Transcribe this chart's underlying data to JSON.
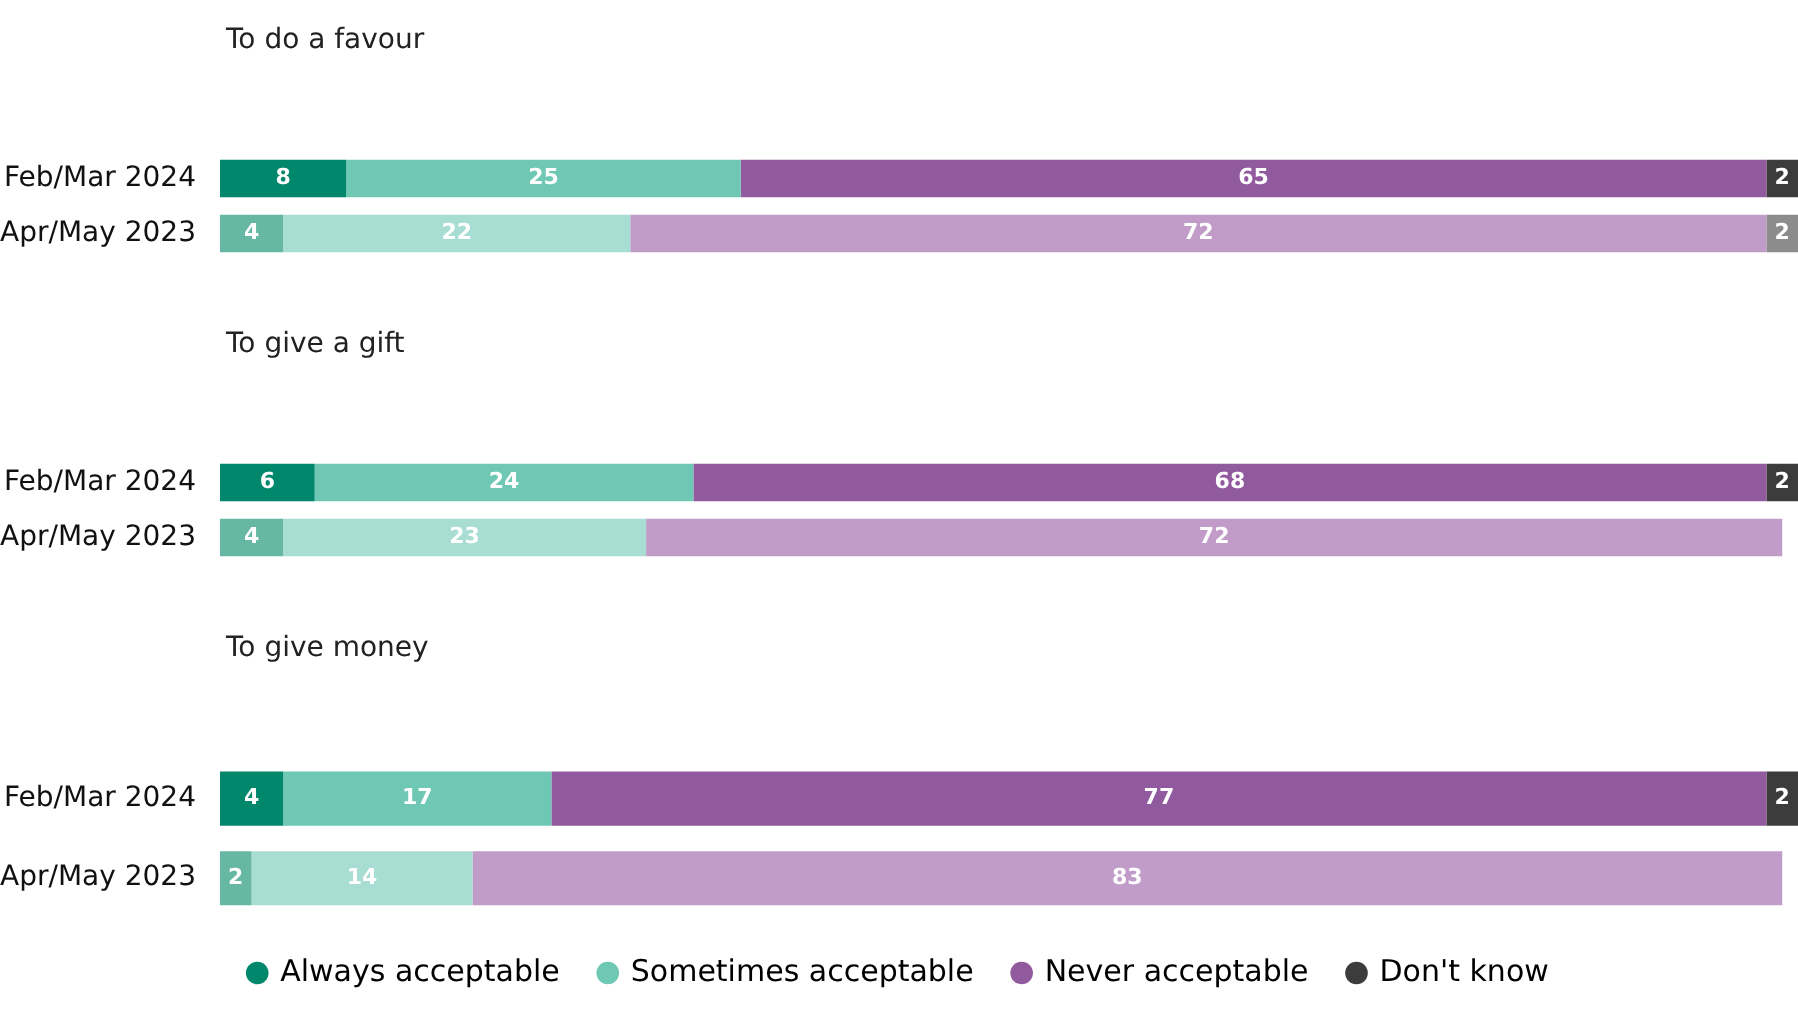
{
  "chart_data": [
    {
      "type": "bar",
      "orientation": "horizontal",
      "stacked": true,
      "title": "To do a favour",
      "categories": [
        "Feb/Mar 2024",
        "Apr/May 2023"
      ],
      "xlim": [
        0,
        100
      ],
      "tick_labels": "y",
      "data_labels": true,
      "series": [
        {
          "colors": [
            "#00876c",
            "#66b8a5"
          ],
          "values": [
            8,
            4
          ]
        },
        {
          "colors": [
            "#6ec8b4",
            "#a8ddd3"
          ],
          "values": [
            25,
            22
          ]
        },
        {
          "colors": [
            "#925a9e",
            "#c19cc8"
          ],
          "values": [
            65,
            72
          ]
        },
        {
          "colors": [
            "#3c3c3c",
            "#8c8c8c"
          ],
          "values": [
            2,
            2
          ]
        }
      ]
    },
    {
      "type": "bar",
      "orientation": "horizontal",
      "stacked": true,
      "title": "To give a gift",
      "categories": [
        "Feb/Mar 2024",
        "Apr/May 2023"
      ],
      "xlim": [
        0,
        100
      ],
      "tick_labels": "y",
      "data_labels": true,
      "series": [
        {
          "colors": [
            "#00876c",
            "#66b8a5"
          ],
          "values": [
            6,
            4
          ]
        },
        {
          "colors": [
            "#6ec8b4",
            "#a8ddd3"
          ],
          "values": [
            24,
            23
          ]
        },
        {
          "colors": [
            "#925a9e",
            "#c19cc8"
          ],
          "values": [
            68,
            72
          ]
        },
        {
          "colors": [
            "#3c3c3c",
            "#8c8c8c"
          ],
          "values": [
            2,
            null
          ]
        }
      ]
    },
    {
      "type": "bar",
      "orientation": "horizontal",
      "stacked": true,
      "title": "To give money",
      "categories": [
        "Feb/Mar 2024",
        "Apr/May 2023"
      ],
      "xlim": [
        0,
        100
      ],
      "tick_labels": "y",
      "data_labels": true,
      "legend": "bottom",
      "series": [
        {
          "name": "Always acceptable",
          "colors": [
            "#00876c",
            "#66b8a5"
          ],
          "values": [
            4,
            2
          ]
        },
        {
          "name": "Sometimes acceptable",
          "colors": [
            "#6ec8b4",
            "#a8ddd3"
          ],
          "values": [
            17,
            14
          ]
        },
        {
          "name": "Never acceptable",
          "colors": [
            "#925a9e",
            "#c19cc8"
          ],
          "values": [
            77,
            83
          ]
        },
        {
          "name": "Don't know",
          "colors": [
            "#3c3c3c",
            "#8c8c8c"
          ],
          "values": [
            2,
            null
          ]
        }
      ]
    }
  ]
}
